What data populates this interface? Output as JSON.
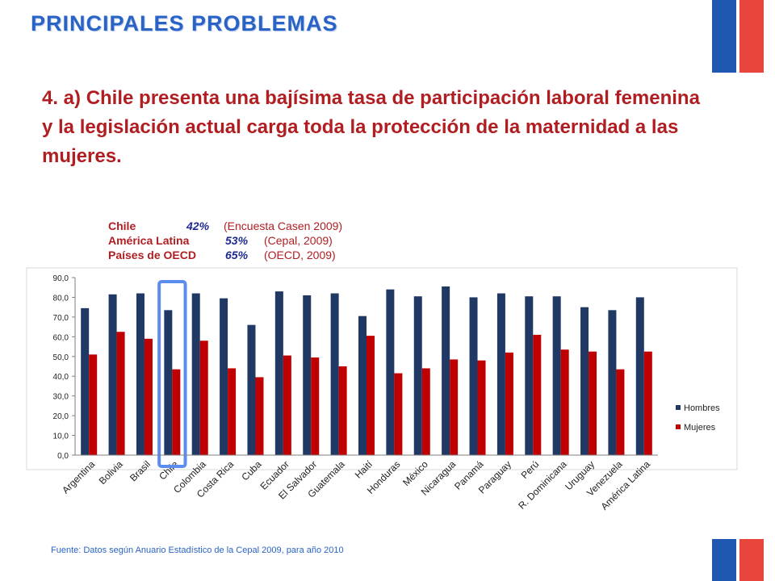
{
  "page": {
    "title": "PRINCIPALES PROBLEMAS",
    "headline": "4.  a) Chile presenta una bajísima tasa de participación laboral femenina y la legislación actual carga toda la protección de la maternidad a las mujeres.",
    "source": "Fuente: Datos según Anuario Estadístico de la Cepal 2009, para año 2010"
  },
  "stats": [
    {
      "region": "Chile",
      "pct": "42%",
      "source": "(Encuesta Casen 2009)"
    },
    {
      "region": "América Latina",
      "pct": "53%",
      "source": "(Cepal, 2009)"
    },
    {
      "region": "Países de OECD",
      "pct": "65%",
      "source": "(OECD, 2009)"
    }
  ],
  "colors": {
    "title": "#2a63c6",
    "headline": "#b01e22",
    "hombres": "#1f3864",
    "mujeres": "#c00000",
    "highlight": "#5b8def",
    "flag_blue": "#1f58b0",
    "flag_red": "#e8463d"
  },
  "chart_data": {
    "type": "bar",
    "categories": [
      "Argentina",
      "Bolivia",
      "Brasil",
      "Chile",
      "Colombia",
      "Costa Rica",
      "Cuba",
      "Ecuador",
      "El Salvador",
      "Guatemala",
      "Haití",
      "Honduras",
      "México",
      "Nicaragua",
      "Panamá",
      "Paraguay",
      "Perú",
      "R. Dominicana",
      "Uruguay",
      "Venezuela",
      "América Latina"
    ],
    "series": [
      {
        "name": "Hombres",
        "values": [
          74.5,
          81.5,
          82.0,
          73.5,
          82.0,
          79.5,
          66.0,
          83.0,
          81.0,
          82.0,
          70.5,
          84.0,
          80.5,
          85.5,
          80.0,
          82.0,
          80.5,
          80.5,
          75.0,
          73.5,
          80.0
        ]
      },
      {
        "name": "Mujeres",
        "values": [
          51.0,
          62.5,
          59.0,
          43.5,
          58.0,
          44.0,
          39.5,
          50.5,
          49.5,
          45.0,
          60.5,
          41.5,
          44.0,
          48.5,
          48.0,
          52.0,
          61.0,
          53.5,
          52.5,
          43.5,
          52.5
        ]
      }
    ],
    "yticks": [
      "0,0",
      "10,0",
      "20,0",
      "30,0",
      "40,0",
      "50,0",
      "60,0",
      "70,0",
      "80,0",
      "90,0"
    ],
    "ylim": [
      0,
      90
    ],
    "legend": "right",
    "highlight_category": "Chile"
  }
}
